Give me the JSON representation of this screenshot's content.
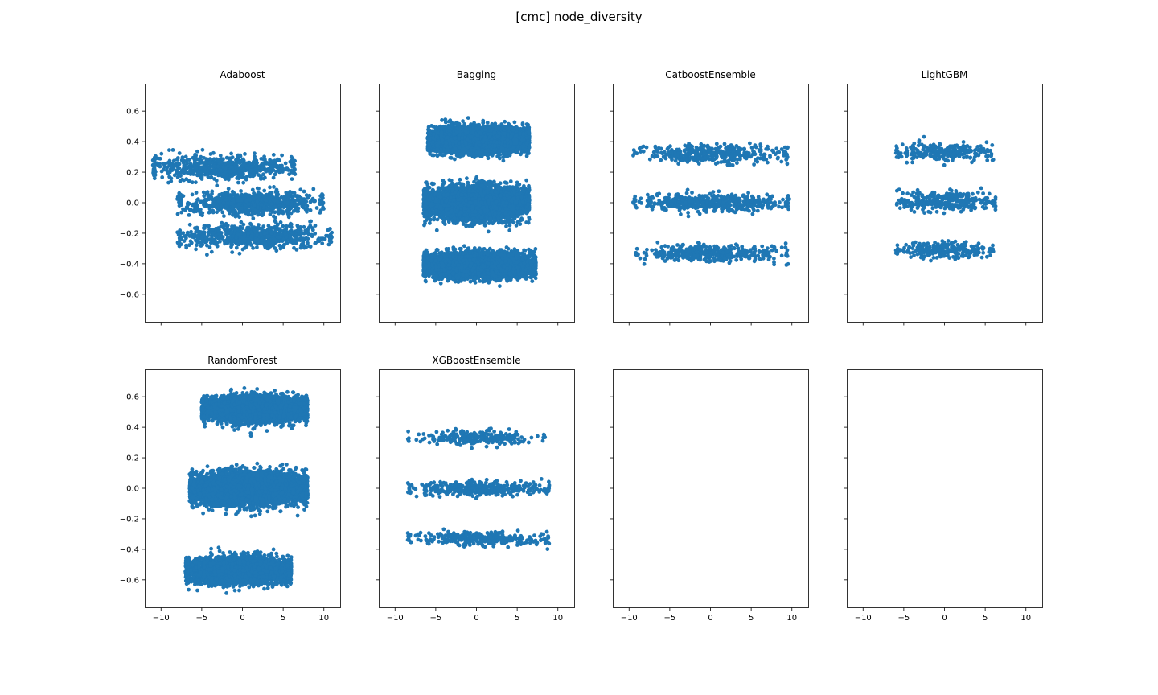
{
  "figure": {
    "title": "[cmc] node_diversity",
    "colors": {
      "marker": "#1f77b4",
      "axes": "#000000",
      "background": "#ffffff"
    }
  },
  "chart_data": {
    "type": "scatter",
    "layout": "2x4 subplots, shared x and y axes",
    "xlim": [
      -12,
      12
    ],
    "ylim": [
      -0.78,
      0.78
    ],
    "x_ticks": [
      -10,
      -5,
      0,
      5,
      10
    ],
    "y_ticks": [
      -0.6,
      -0.4,
      -0.2,
      0.0,
      0.2,
      0.4,
      0.6
    ],
    "x_tick_labels": [
      "−10",
      "−5",
      "0",
      "5",
      "10"
    ],
    "y_tick_labels": [
      "−0.6",
      "−0.4",
      "−0.2",
      "0.0",
      "0.2",
      "0.4",
      "0.6"
    ],
    "grid": false,
    "panels": [
      {
        "title": "Adaboost",
        "clusters": [
          {
            "x_range": [
              -11,
              6.5
            ],
            "y_center": 0.23,
            "y_spread": 0.07,
            "approx_points": 700
          },
          {
            "x_range": [
              -8,
              10
            ],
            "y_center": 0.0,
            "y_spread": 0.07,
            "approx_points": 800
          },
          {
            "x_range": [
              -8,
              11
            ],
            "y_center": -0.22,
            "y_spread": 0.07,
            "approx_points": 700
          }
        ]
      },
      {
        "title": "Bagging",
        "clusters": [
          {
            "x_range": [
              -6,
              6.5
            ],
            "y_center": 0.41,
            "y_spread": 0.07,
            "approx_points": 5000
          },
          {
            "x_range": [
              -6.5,
              6.5
            ],
            "y_center": 0.0,
            "y_spread": 0.09,
            "approx_points": 6000
          },
          {
            "x_range": [
              -6.5,
              7.3
            ],
            "y_center": -0.41,
            "y_spread": 0.07,
            "approx_points": 5000
          }
        ]
      },
      {
        "title": "CatboostEnsemble",
        "clusters": [
          {
            "x_range": [
              -9.5,
              9.5
            ],
            "y_center": 0.32,
            "y_spread": 0.05,
            "approx_points": 400
          },
          {
            "x_range": [
              -9.5,
              9.7
            ],
            "y_center": 0.0,
            "y_spread": 0.05,
            "approx_points": 500
          },
          {
            "x_range": [
              -9.3,
              9.7
            ],
            "y_center": -0.33,
            "y_spread": 0.05,
            "approx_points": 400
          }
        ]
      },
      {
        "title": "LightGBM",
        "clusters": [
          {
            "x_range": [
              -6,
              6
            ],
            "y_center": 0.33,
            "y_spread": 0.05,
            "approx_points": 250
          },
          {
            "x_range": [
              -6,
              6.3
            ],
            "y_center": 0.01,
            "y_spread": 0.06,
            "approx_points": 300
          },
          {
            "x_range": [
              -6,
              6
            ],
            "y_center": -0.31,
            "y_spread": 0.05,
            "approx_points": 250
          }
        ]
      },
      {
        "title": "RandomForest",
        "clusters": [
          {
            "x_range": [
              -5,
              8
            ],
            "y_center": 0.52,
            "y_spread": 0.07,
            "approx_points": 5000
          },
          {
            "x_range": [
              -6.5,
              8
            ],
            "y_center": 0.0,
            "y_spread": 0.09,
            "approx_points": 6000
          },
          {
            "x_range": [
              -7,
              6
            ],
            "y_center": -0.54,
            "y_spread": 0.07,
            "approx_points": 5000
          }
        ]
      },
      {
        "title": "XGBoostEnsemble",
        "clusters": [
          {
            "x_range": [
              -8.5,
              8.5
            ],
            "y_center": 0.33,
            "y_spread": 0.04,
            "approx_points": 250
          },
          {
            "x_range": [
              -8.5,
              9
            ],
            "y_center": 0.0,
            "y_spread": 0.04,
            "approx_points": 350
          },
          {
            "x_range": [
              -8.5,
              9
            ],
            "y_center": -0.33,
            "y_spread": 0.04,
            "approx_points": 300
          }
        ]
      },
      {
        "title": "",
        "clusters": []
      },
      {
        "title": "",
        "clusters": []
      }
    ]
  }
}
